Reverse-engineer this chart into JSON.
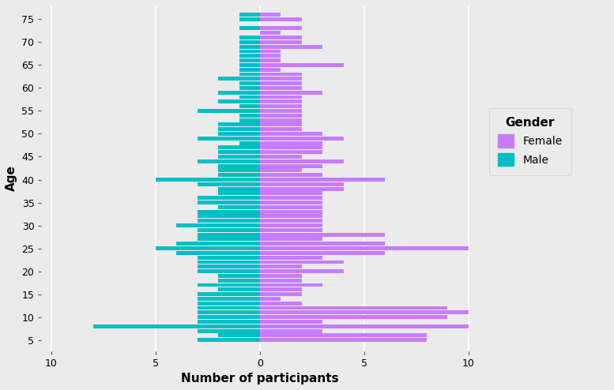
{
  "ages": [
    5,
    6,
    7,
    8,
    9,
    10,
    11,
    12,
    13,
    14,
    15,
    16,
    17,
    18,
    19,
    20,
    21,
    22,
    23,
    24,
    25,
    26,
    27,
    28,
    29,
    30,
    31,
    32,
    33,
    34,
    35,
    36,
    37,
    38,
    39,
    40,
    41,
    42,
    43,
    44,
    45,
    46,
    47,
    48,
    49,
    50,
    51,
    52,
    53,
    54,
    55,
    56,
    57,
    58,
    59,
    60,
    61,
    62,
    63,
    64,
    65,
    66,
    67,
    68,
    69,
    70,
    71,
    72,
    73,
    74,
    75,
    76
  ],
  "male": [
    3,
    2,
    3,
    8,
    3,
    3,
    3,
    3,
    3,
    3,
    3,
    2,
    3,
    2,
    2,
    3,
    3,
    3,
    3,
    4,
    5,
    4,
    3,
    3,
    3,
    4,
    3,
    3,
    3,
    2,
    3,
    3,
    2,
    2,
    3,
    5,
    2,
    2,
    2,
    3,
    2,
    2,
    2,
    1,
    3,
    2,
    2,
    2,
    1,
    1,
    3,
    1,
    2,
    1,
    2,
    1,
    1,
    2,
    1,
    1,
    1,
    1,
    1,
    1,
    1,
    1,
    1,
    0,
    1,
    0,
    1,
    1
  ],
  "female": [
    8,
    8,
    3,
    10,
    3,
    9,
    10,
    9,
    2,
    1,
    2,
    2,
    3,
    2,
    2,
    4,
    2,
    4,
    3,
    6,
    10,
    6,
    3,
    6,
    3,
    3,
    3,
    3,
    3,
    3,
    3,
    3,
    3,
    4,
    4,
    6,
    3,
    2,
    3,
    4,
    2,
    3,
    3,
    3,
    4,
    3,
    2,
    2,
    2,
    2,
    2,
    2,
    2,
    2,
    3,
    2,
    2,
    2,
    2,
    1,
    4,
    1,
    1,
    1,
    3,
    2,
    2,
    1,
    2,
    0,
    2,
    1
  ],
  "male_color": "#00BFC4",
  "female_color": "#C77CFF",
  "bg_color": "#EBEBEB",
  "grid_color": "#FFFFFF",
  "xlabel": "Number of participants",
  "ylabel": "Age",
  "xlim": [
    -10.5,
    10.5
  ],
  "xticks": [
    -10,
    -5,
    0,
    5,
    10
  ],
  "xticklabels": [
    "10",
    "5",
    "0",
    "5",
    "10"
  ],
  "yticks": [
    5,
    10,
    15,
    20,
    25,
    30,
    35,
    40,
    45,
    50,
    55,
    60,
    65,
    70,
    75
  ],
  "ylim": [
    2.5,
    78
  ],
  "bar_height": 0.85
}
